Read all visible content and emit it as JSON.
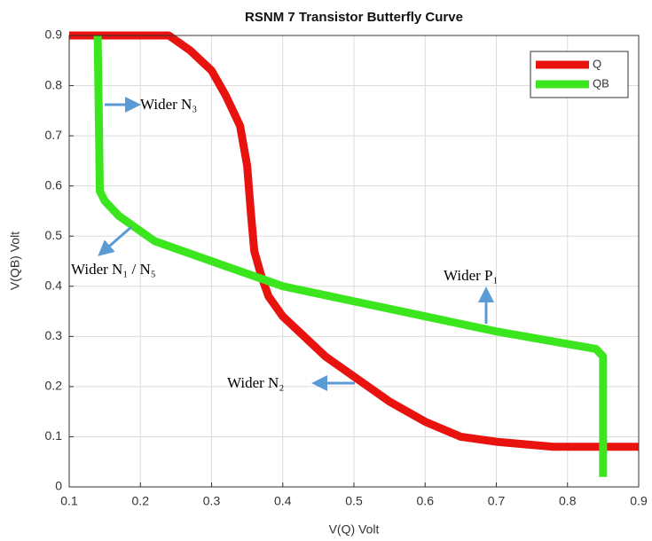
{
  "chart_data": {
    "type": "line",
    "title": "RSNM 7 Transistor Butterfly Curve",
    "x_label": "V(Q) Volt",
    "y_label": "V(QB) Volt",
    "xlim": [
      0.1,
      0.9
    ],
    "ylim": [
      0,
      0.9
    ],
    "xticks": [
      0.1,
      0.2,
      0.3,
      0.4,
      0.5,
      0.6,
      0.7,
      0.8,
      0.9
    ],
    "yticks": [
      0,
      0.1,
      0.2,
      0.3,
      0.4,
      0.5,
      0.6,
      0.7,
      0.8,
      0.9
    ],
    "grid": true,
    "legend": "northeast",
    "series": [
      {
        "name": "Q",
        "color": "#e8120f",
        "x": [
          0.1,
          0.24,
          0.27,
          0.3,
          0.32,
          0.34,
          0.35,
          0.355,
          0.36,
          0.37,
          0.38,
          0.4,
          0.43,
          0.46,
          0.5,
          0.55,
          0.6,
          0.65,
          0.7,
          0.78,
          0.9
        ],
        "values": [
          0.9,
          0.9,
          0.87,
          0.83,
          0.78,
          0.72,
          0.64,
          0.55,
          0.47,
          0.42,
          0.38,
          0.34,
          0.3,
          0.26,
          0.22,
          0.17,
          0.13,
          0.1,
          0.09,
          0.08,
          0.08
        ]
      },
      {
        "name": "QB",
        "color": "#3ce61e",
        "x": [
          0.14,
          0.142,
          0.143,
          0.15,
          0.17,
          0.2,
          0.22,
          0.25,
          0.3,
          0.37,
          0.4,
          0.5,
          0.6,
          0.7,
          0.8,
          0.84,
          0.85,
          0.85
        ],
        "values": [
          0.9,
          0.7,
          0.59,
          0.57,
          0.54,
          0.51,
          0.49,
          0.475,
          0.45,
          0.415,
          0.4,
          0.37,
          0.34,
          0.31,
          0.285,
          0.275,
          0.26,
          0.02
        ]
      }
    ],
    "annotations": [
      "Wider N₃",
      "Wider N₁ / N₅",
      "Wider P₁",
      "Wider N₂"
    ]
  }
}
